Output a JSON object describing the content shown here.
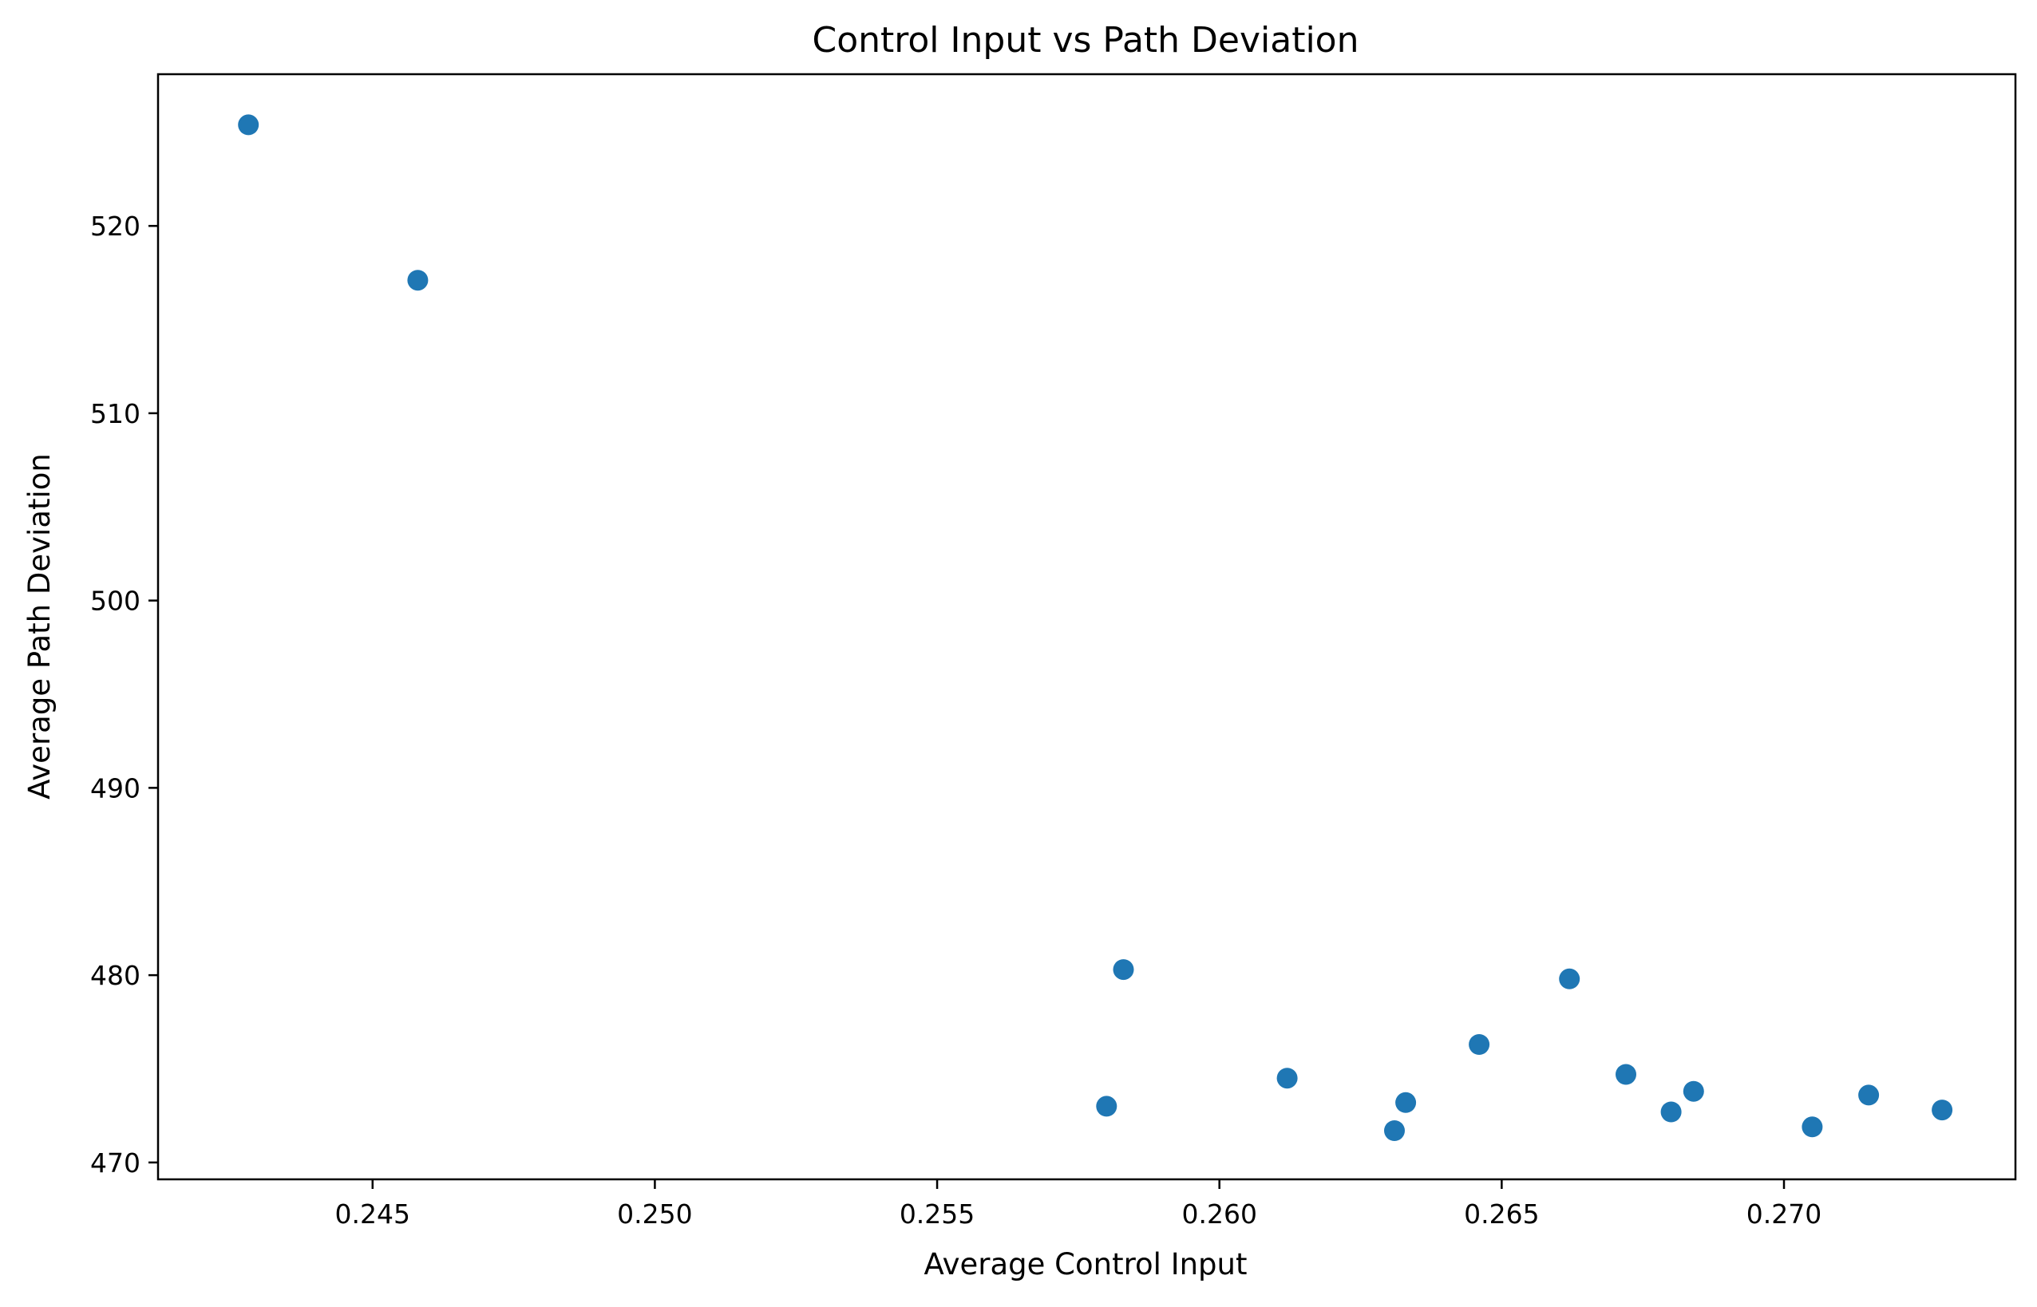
{
  "chart_data": {
    "type": "scatter",
    "title": "Control Input vs Path Deviation",
    "xlabel": "Average Control Input",
    "ylabel": "Average Path Deviation",
    "xlim": [
      0.2412,
      0.2741
    ],
    "ylim": [
      469.1,
      528.1
    ],
    "xticks": [
      0.245,
      0.25,
      0.255,
      0.26,
      0.265,
      0.27
    ],
    "xtick_labels": [
      "0.245",
      "0.250",
      "0.255",
      "0.260",
      "0.265",
      "0.270"
    ],
    "yticks": [
      470,
      480,
      490,
      500,
      510,
      520
    ],
    "ytick_labels": [
      "470",
      "480",
      "490",
      "500",
      "510",
      "520"
    ],
    "grid": false,
    "marker_color": "#1f77b4",
    "series": [
      {
        "points": [
          {
            "x": 0.2428,
            "y": 525.4
          },
          {
            "x": 0.2458,
            "y": 517.1
          },
          {
            "x": 0.258,
            "y": 473.0
          },
          {
            "x": 0.2583,
            "y": 480.3
          },
          {
            "x": 0.2612,
            "y": 474.5
          },
          {
            "x": 0.2631,
            "y": 471.7
          },
          {
            "x": 0.2633,
            "y": 473.2
          },
          {
            "x": 0.2646,
            "y": 476.3
          },
          {
            "x": 0.2662,
            "y": 479.8
          },
          {
            "x": 0.2672,
            "y": 474.7
          },
          {
            "x": 0.268,
            "y": 472.7
          },
          {
            "x": 0.2684,
            "y": 473.8
          },
          {
            "x": 0.2705,
            "y": 471.9
          },
          {
            "x": 0.2715,
            "y": 473.6
          },
          {
            "x": 0.2728,
            "y": 472.8
          }
        ]
      }
    ]
  }
}
